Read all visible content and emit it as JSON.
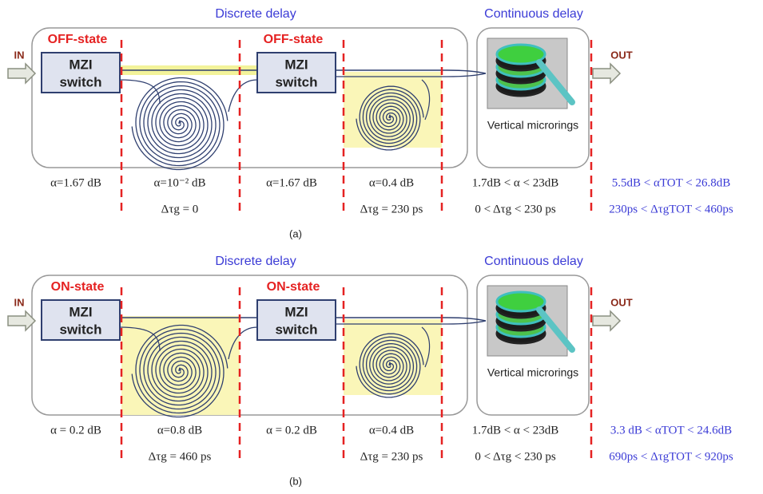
{
  "panels": [
    {
      "label": "(a)",
      "discrete_title": "Discrete delay",
      "continuous_title": "Continuous delay",
      "input": "IN",
      "output": "OUT",
      "switches": [
        {
          "state": "OFF-state",
          "line1": "MZI",
          "line2": "switch"
        },
        {
          "state": "OFF-state",
          "line1": "MZI",
          "line2": "switch"
        }
      ],
      "microrings": "Vertical microrings",
      "losses": [
        "α=1.67 dB",
        "α=10⁻² dB",
        "α=1.67 dB",
        "α=0.4 dB",
        "1.7dB < α < 23dB",
        "5.5dB < αTOT < 26.8dB"
      ],
      "delays": [
        "Δτg = 0",
        "Δτg = 230 ps",
        "0 < Δτg < 230 ps",
        "230ps < ΔτgTOT < 460ps"
      ]
    },
    {
      "label": "(b)",
      "discrete_title": "Discrete delay",
      "continuous_title": "Continuous delay",
      "input": "IN",
      "output": "OUT",
      "switches": [
        {
          "state": "ON-state",
          "line1": "MZI",
          "line2": "switch"
        },
        {
          "state": "ON-state",
          "line1": "MZI",
          "line2": "switch"
        }
      ],
      "microrings": "Vertical microrings",
      "losses": [
        "α = 0.2 dB",
        "α=0.8 dB",
        "α = 0.2 dB",
        "α=0.4 dB",
        "1.7dB < α < 23dB",
        "3.3 dB < αTOT < 24.6dB"
      ],
      "delays": [
        "Δτg = 460 ps",
        "Δτg = 230 ps",
        "0 < Δτg < 230 ps",
        "690ps < ΔτgTOT < 920ps"
      ]
    }
  ]
}
